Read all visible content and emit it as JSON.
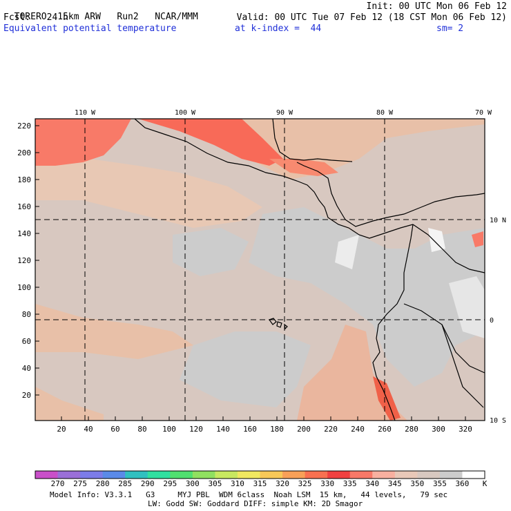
{
  "header": {
    "model": "TORERO",
    "resolution": "15km ARW",
    "run": "Run2",
    "org": "NCAR/MMM",
    "init": "Init: 00 UTC Mon 06 Feb 12",
    "fcst_label": "Fcst:",
    "fcst_value": "24 h",
    "valid": "Valid: 00 UTC Tue 07 Feb 12 (18 CST Mon 06 Feb 12)",
    "field": "Equivalent potential temperature",
    "level": "at k-index =  44",
    "smoothing": "sm= 2"
  },
  "map": {
    "lon_labels": [
      "110 W",
      "100 W",
      "90 W",
      "80 W",
      "70 W"
    ],
    "lat_labels": [
      "10 N",
      "0",
      "10 S"
    ],
    "y_ticks": [
      "220",
      "200",
      "180",
      "160",
      "140",
      "120",
      "100",
      "80",
      "60",
      "40",
      "20"
    ],
    "x_ticks": [
      "20",
      "40",
      "60",
      "80",
      "100",
      "120",
      "140",
      "160",
      "180",
      "200",
      "220",
      "240",
      "260",
      "280",
      "300",
      "320"
    ]
  },
  "colorbar": {
    "labels": [
      "270",
      "275",
      "280",
      "285",
      "290",
      "295",
      "300",
      "305",
      "310",
      "315",
      "320",
      "325",
      "330",
      "335",
      "340",
      "345",
      "350",
      "355",
      "360"
    ],
    "unit": "K",
    "colors": [
      "#c94fc9",
      "#9a6fd8",
      "#7c7ce8",
      "#5a8ae8",
      "#30c0c0",
      "#30e0a0",
      "#50e070",
      "#90e060",
      "#c8e860",
      "#f0e860",
      "#f8c858",
      "#f8a058",
      "#f87050",
      "#f04040",
      "#f87868",
      "#f8b0a0",
      "#e8c8b8",
      "#d8c8c0",
      "#cccccc",
      "#ffffff"
    ]
  },
  "footer": {
    "line1": "Model Info: V3.3.1   G3     MYJ PBL  WDM 6class  Noah LSM  15 km,   44 levels,   79 sec",
    "line2": "LW: Godd SW: Goddard DIFF: simple KM: 2D Smagor"
  }
}
